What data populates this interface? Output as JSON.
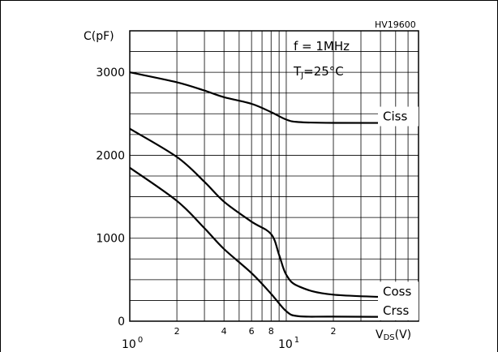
{
  "chart_data": {
    "type": "line",
    "reference_code": "HV19600",
    "x_scale": "log",
    "xlim": [
      1,
      70
    ],
    "ylim": [
      0,
      3500
    ],
    "ylabel": "C(pF)",
    "xlabel_main": "V",
    "xlabel_sub": "DS",
    "xlabel_unit": "(V)",
    "conditions": {
      "freq_label": "f = 1MHz",
      "temp_main": "T",
      "temp_sub": "J",
      "temp_value": "=25°C"
    },
    "y_ticks": [
      {
        "value": 0,
        "label": "0"
      },
      {
        "value": 1000,
        "label": "1000"
      },
      {
        "value": 2000,
        "label": "2000"
      },
      {
        "value": 3000,
        "label": "3000"
      }
    ],
    "x_ticks": [
      {
        "value": 1,
        "base": "10",
        "exp": "0"
      },
      {
        "value": 2,
        "label": "2"
      },
      {
        "value": 4,
        "label": "4"
      },
      {
        "value": 6,
        "label": "6"
      },
      {
        "value": 8,
        "label": "8"
      },
      {
        "value": 10,
        "base": "10",
        "exp": "1"
      },
      {
        "value": 20,
        "label": "2"
      }
    ],
    "series": [
      {
        "name": "Ciss",
        "points": [
          [
            1,
            3000
          ],
          [
            2,
            2880
          ],
          [
            3,
            2780
          ],
          [
            4,
            2700
          ],
          [
            6,
            2620
          ],
          [
            8,
            2520
          ],
          [
            10,
            2430
          ],
          [
            12,
            2400
          ],
          [
            20,
            2390
          ],
          [
            70,
            2390
          ]
        ]
      },
      {
        "name": "Coss",
        "points": [
          [
            1,
            2320
          ],
          [
            2,
            1980
          ],
          [
            3,
            1680
          ],
          [
            4,
            1440
          ],
          [
            6,
            1200
          ],
          [
            8,
            1050
          ],
          [
            9,
            800
          ],
          [
            10,
            560
          ],
          [
            12,
            420
          ],
          [
            20,
            320
          ],
          [
            70,
            280
          ]
        ]
      },
      {
        "name": "Crss",
        "points": [
          [
            1,
            1850
          ],
          [
            2,
            1450
          ],
          [
            3,
            1120
          ],
          [
            4,
            870
          ],
          [
            6,
            580
          ],
          [
            8,
            330
          ],
          [
            10,
            120
          ],
          [
            12,
            60
          ],
          [
            20,
            55
          ],
          [
            70,
            50
          ]
        ]
      }
    ]
  }
}
